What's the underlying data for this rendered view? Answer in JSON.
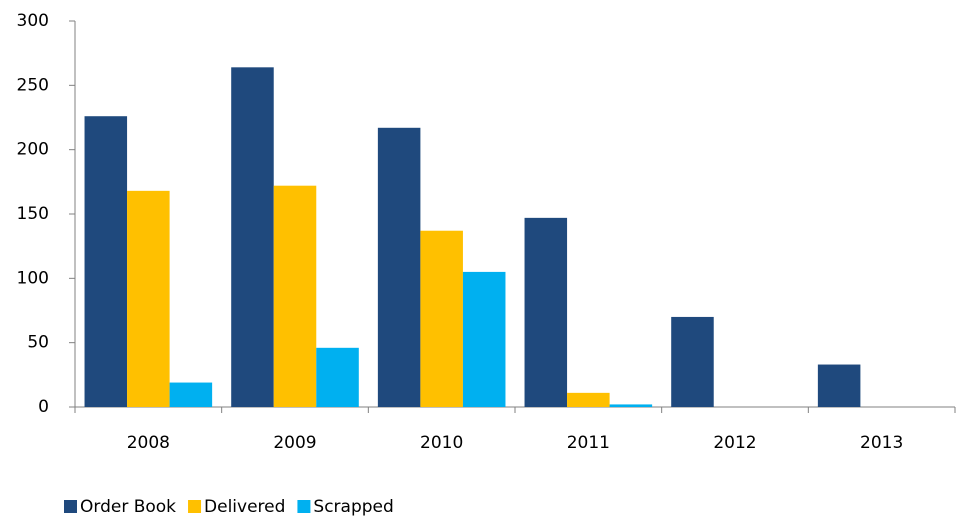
{
  "chart_data": {
    "type": "bar",
    "categories": [
      "2008",
      "2009",
      "2010",
      "2011",
      "2012",
      "2013"
    ],
    "series": [
      {
        "name": "Order Book",
        "color": "#1f497d",
        "values": [
          226,
          264,
          217,
          147,
          70,
          33
        ]
      },
      {
        "name": "Delivered",
        "color": "#ffc000",
        "values": [
          168,
          172,
          137,
          11,
          0,
          0
        ]
      },
      {
        "name": "Scrapped",
        "color": "#00b0f0",
        "values": [
          19,
          46,
          105,
          2,
          0,
          0
        ]
      }
    ],
    "ylim": [
      0,
      300
    ],
    "yticks": [
      0,
      50,
      100,
      150,
      200,
      250,
      300
    ],
    "grid": false,
    "legend": "bottom-left"
  }
}
